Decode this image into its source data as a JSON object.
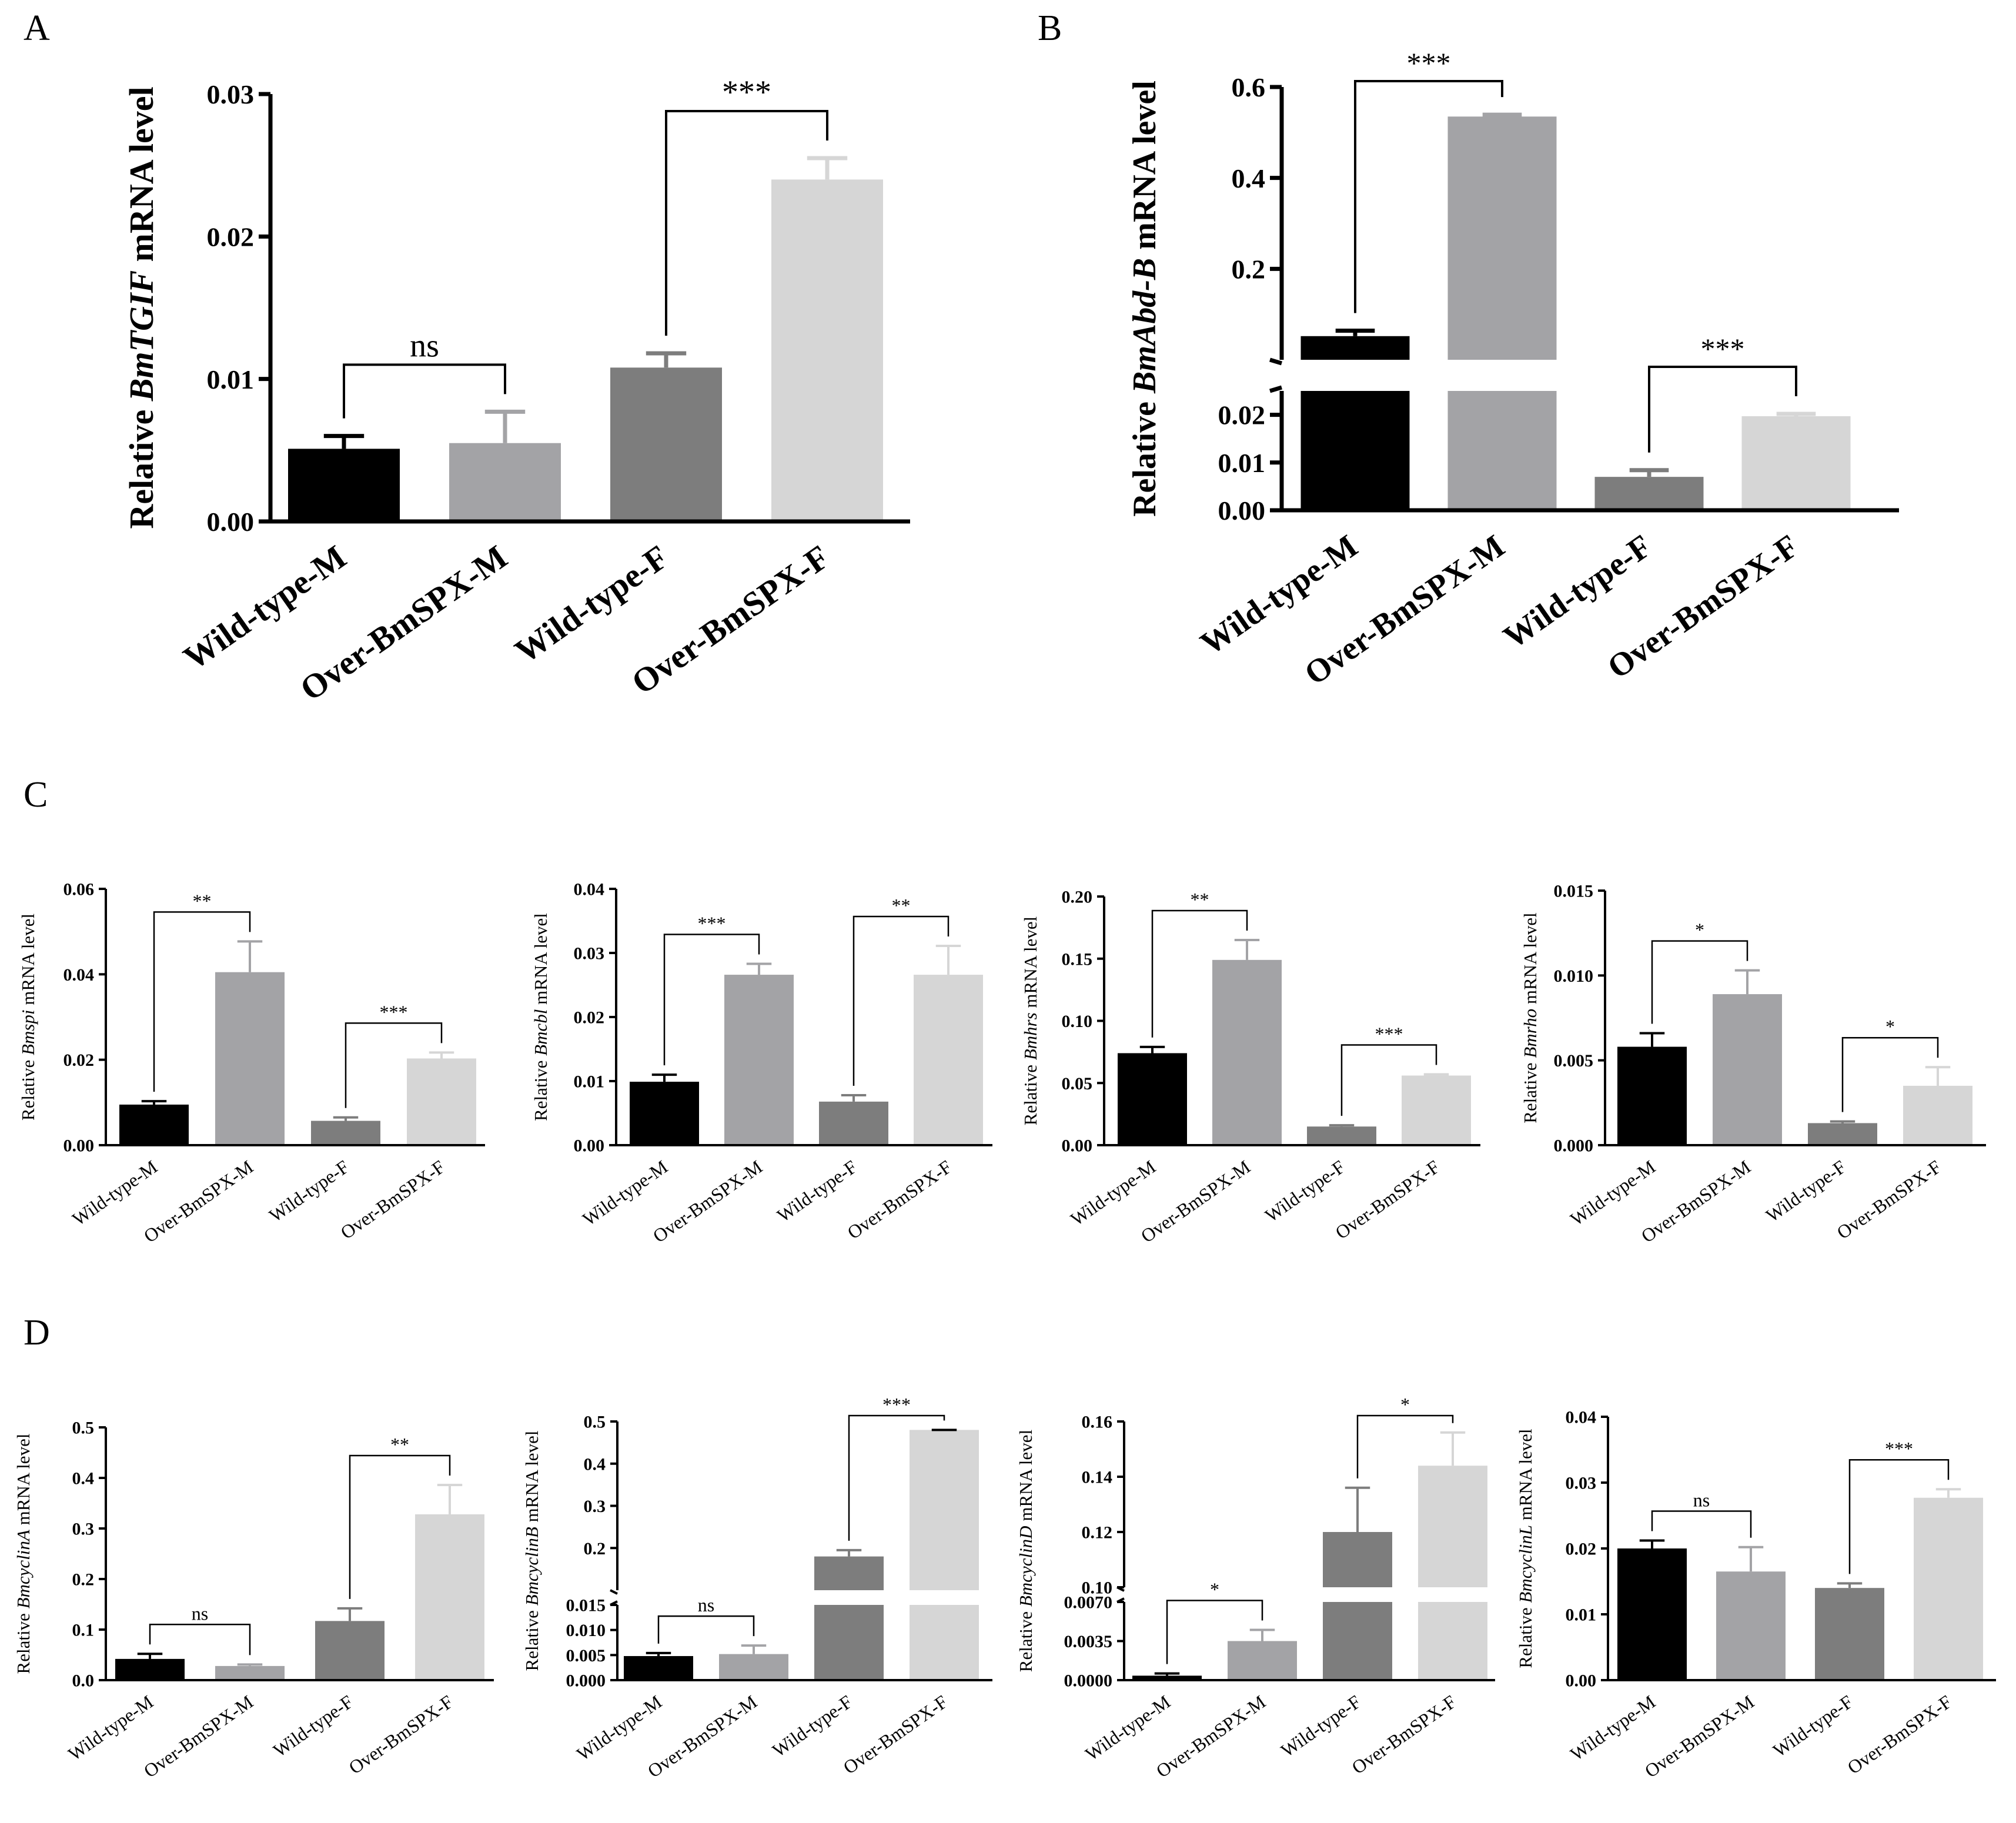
{
  "figure": {
    "categories": [
      "Wild-type-M",
      "Over-BmSPX-M",
      "Wild-type-F",
      "Over-BmSPX-F"
    ],
    "colors": {
      "Wild-type-M": "#000000",
      "Over-BmSPX-M": "#a3a3a6",
      "Wild-type-F": "#7d7d7d",
      "Over-BmSPX-F": "#d6d6d6"
    }
  },
  "chart_data": [
    {
      "panel": "A",
      "type": "bar",
      "ylabel_prefix": "Relative ",
      "gene": "BmTGIF",
      "ylabel_suffix": " mRNA level",
      "categories": [
        "Wild-type-M",
        "Over-BmSPX-M",
        "Wild-type-F",
        "Over-BmSPX-F"
      ],
      "values": [
        0.0051,
        0.0055,
        0.0108,
        0.024
      ],
      "errors": [
        0.0009,
        0.0022,
        0.001,
        0.0015
      ],
      "ylim": [
        0,
        0.03
      ],
      "ticks": [
        0,
        0.01,
        0.02,
        0.03
      ],
      "tick_labels": [
        "0.00",
        "0.01",
        "0.02",
        "0.03"
      ],
      "significance": [
        {
          "from": 0,
          "to": 1,
          "label": "ns"
        },
        {
          "from": 2,
          "to": 3,
          "label": "***"
        }
      ]
    },
    {
      "panel": "B",
      "type": "bar",
      "ylabel_prefix": "Relative ",
      "gene": "BmAbd-B",
      "ylabel_suffix": " mRNA level",
      "categories": [
        "Wild-type-M",
        "Over-BmSPX-M",
        "Wild-type-F",
        "Over-BmSPX-F"
      ],
      "values": [
        0.052,
        0.535,
        0.007,
        0.0197
      ],
      "errors": [
        0.012,
        0.004,
        0.0014,
        0.0005
      ],
      "axis_break": {
        "lower": [
          0,
          0.025
        ],
        "upper": [
          0,
          0.6
        ]
      },
      "ticks_lower": [
        0,
        0.01,
        0.02
      ],
      "tick_labels_lower": [
        "0.00",
        "0.01",
        "0.02"
      ],
      "ticks_upper": [
        0.2,
        0.4,
        0.6
      ],
      "tick_labels_upper": [
        "0.2",
        "0.4",
        "0.6"
      ],
      "significance": [
        {
          "from": 0,
          "to": 1,
          "label": "***"
        },
        {
          "from": 2,
          "to": 3,
          "label": "***"
        }
      ]
    },
    {
      "panel": "C",
      "type": "bar",
      "ylabel_prefix": "Relative ",
      "gene": "Bmspi",
      "ylabel_suffix": " mRNA level",
      "categories": [
        "Wild-type-M",
        "Over-BmSPX-M",
        "Wild-type-F",
        "Over-BmSPX-F"
      ],
      "values": [
        0.0095,
        0.0405,
        0.0057,
        0.0203
      ],
      "errors": [
        0.0008,
        0.0072,
        0.0008,
        0.0014
      ],
      "ylim": [
        0,
        0.06
      ],
      "ticks": [
        0,
        0.02,
        0.04,
        0.06
      ],
      "tick_labels": [
        "0.00",
        "0.02",
        "0.04",
        "0.06"
      ],
      "significance": [
        {
          "from": 0,
          "to": 1,
          "label": "**"
        },
        {
          "from": 2,
          "to": 3,
          "label": "***"
        }
      ]
    },
    {
      "panel": "C",
      "type": "bar",
      "ylabel_prefix": "Relative ",
      "gene": "Bmcbl",
      "ylabel_suffix": " mRNA level",
      "categories": [
        "Wild-type-M",
        "Over-BmSPX-M",
        "Wild-type-F",
        "Over-BmSPX-F"
      ],
      "values": [
        0.0099,
        0.0266,
        0.0068,
        0.0266
      ],
      "errors": [
        0.0011,
        0.0017,
        0.001,
        0.0045
      ],
      "ylim": [
        0,
        0.04
      ],
      "ticks": [
        0,
        0.01,
        0.02,
        0.03,
        0.04
      ],
      "tick_labels": [
        "0.00",
        "0.01",
        "0.02",
        "0.03",
        "0.04"
      ],
      "significance": [
        {
          "from": 0,
          "to": 1,
          "label": "***"
        },
        {
          "from": 2,
          "to": 3,
          "label": "**"
        }
      ]
    },
    {
      "panel": "C",
      "type": "bar",
      "ylabel_prefix": "Relative ",
      "gene": "Bmhrs",
      "ylabel_suffix": " mRNA level",
      "categories": [
        "Wild-type-M",
        "Over-BmSPX-M",
        "Wild-type-F",
        "Over-BmSPX-F"
      ],
      "values": [
        0.074,
        0.149,
        0.015,
        0.056
      ],
      "errors": [
        0.005,
        0.016,
        0.001,
        0.001
      ],
      "ylim": [
        0,
        0.2
      ],
      "ticks": [
        0,
        0.05,
        0.1,
        0.15,
        0.2
      ],
      "tick_labels": [
        "0.00",
        "0.05",
        "0.10",
        "0.15",
        "0.20"
      ],
      "significance": [
        {
          "from": 0,
          "to": 1,
          "label": "**"
        },
        {
          "from": 2,
          "to": 3,
          "label": "***"
        }
      ]
    },
    {
      "panel": "C",
      "type": "bar",
      "ylabel_prefix": "Relative ",
      "gene": "Bmrho",
      "ylabel_suffix": " mRNA level",
      "categories": [
        "Wild-type-M",
        "Over-BmSPX-M",
        "Wild-type-F",
        "Over-BmSPX-F"
      ],
      "values": [
        0.0058,
        0.0089,
        0.0013,
        0.0035
      ],
      "errors": [
        0.0008,
        0.0014,
        0.0001,
        0.0011
      ],
      "ylim": [
        0,
        0.015
      ],
      "ticks": [
        0,
        0.005,
        0.01,
        0.015
      ],
      "tick_labels": [
        "0.000",
        "0.005",
        "0.010",
        "0.015"
      ],
      "significance": [
        {
          "from": 0,
          "to": 1,
          "label": "*"
        },
        {
          "from": 2,
          "to": 3,
          "label": "*"
        }
      ]
    },
    {
      "panel": "D",
      "type": "bar",
      "ylabel_prefix": "Relative ",
      "gene": "BmcyclinA",
      "ylabel_suffix": " mRNA level",
      "categories": [
        "Wild-type-M",
        "Over-BmSPX-M",
        "Wild-type-F",
        "Over-BmSPX-F"
      ],
      "values": [
        0.042,
        0.028,
        0.117,
        0.328
      ],
      "errors": [
        0.01,
        0.003,
        0.025,
        0.058
      ],
      "ylim": [
        0,
        0.5
      ],
      "ticks": [
        0,
        0.1,
        0.2,
        0.3,
        0.4,
        0.5
      ],
      "tick_labels": [
        "0.0",
        "0.1",
        "0.2",
        "0.3",
        "0.4",
        "0.5"
      ],
      "significance": [
        {
          "from": 0,
          "to": 1,
          "label": "ns"
        },
        {
          "from": 2,
          "to": 3,
          "label": "**"
        }
      ]
    },
    {
      "panel": "D",
      "type": "bar",
      "ylabel_prefix": "Relative ",
      "gene": "BmcyclinB",
      "ylabel_suffix": " mRNA level",
      "categories": [
        "Wild-type-M",
        "Over-BmSPX-M",
        "Wild-type-F",
        "Over-BmSPX-F"
      ],
      "values": [
        0.0048,
        0.0052,
        0.18,
        0.48
      ],
      "errors": [
        0.0006,
        0.0017,
        0.015,
        0.0
      ],
      "axis_break": {
        "lower": [
          0,
          0.015
        ],
        "upper": [
          0.1,
          0.5
        ]
      },
      "ticks_lower": [
        0,
        0.005,
        0.01,
        0.015
      ],
      "tick_labels_lower": [
        "0.000",
        "0.005",
        "0.010",
        "0.015"
      ],
      "ticks_upper": [
        0.2,
        0.3,
        0.4,
        0.5
      ],
      "tick_labels_upper": [
        "0.2",
        "0.3",
        "0.4",
        "0.5"
      ],
      "significance": [
        {
          "from": 0,
          "to": 1,
          "label": "ns"
        },
        {
          "from": 2,
          "to": 3,
          "label": "***"
        }
      ]
    },
    {
      "panel": "D",
      "type": "bar",
      "ylabel_prefix": "Relative ",
      "gene": "BmcyclinD",
      "ylabel_suffix": " mRNA level",
      "categories": [
        "Wild-type-M",
        "Over-BmSPX-M",
        "Wild-type-F",
        "Over-BmSPX-F"
      ],
      "values": [
        0.0004,
        0.0035,
        0.12,
        0.144
      ],
      "errors": [
        0.0002,
        0.001,
        0.016,
        0.012
      ],
      "axis_break": {
        "lower": [
          0,
          0.007
        ],
        "upper": [
          0.1,
          0.16
        ]
      },
      "ticks_lower": [
        0,
        0.0035,
        0.007
      ],
      "tick_labels_lower": [
        "0.0000",
        "0.0035",
        "0.0070"
      ],
      "ticks_upper": [
        0.1,
        0.12,
        0.14,
        0.16
      ],
      "tick_labels_upper": [
        "0.10",
        "0.12",
        "0.14",
        "0.16"
      ],
      "significance": [
        {
          "from": 0,
          "to": 1,
          "label": "*"
        },
        {
          "from": 2,
          "to": 3,
          "label": "*"
        }
      ]
    },
    {
      "panel": "D",
      "type": "bar",
      "ylabel_prefix": "Relative ",
      "gene": "BmcyclinL",
      "ylabel_suffix": " mRNA level",
      "categories": [
        "Wild-type-M",
        "Over-BmSPX-M",
        "Wild-type-F",
        "Over-BmSPX-F"
      ],
      "values": [
        0.02,
        0.0165,
        0.014,
        0.0277
      ],
      "errors": [
        0.0012,
        0.0037,
        0.0007,
        0.0013
      ],
      "ylim": [
        0,
        0.04
      ],
      "ticks": [
        0,
        0.01,
        0.02,
        0.03,
        0.04
      ],
      "tick_labels": [
        "0.00",
        "0.01",
        "0.02",
        "0.03",
        "0.04"
      ],
      "significance": [
        {
          "from": 0,
          "to": 1,
          "label": "ns"
        },
        {
          "from": 2,
          "to": 3,
          "label": "***"
        }
      ]
    }
  ],
  "panel_labels": [
    "A",
    "B",
    "C",
    "D"
  ]
}
